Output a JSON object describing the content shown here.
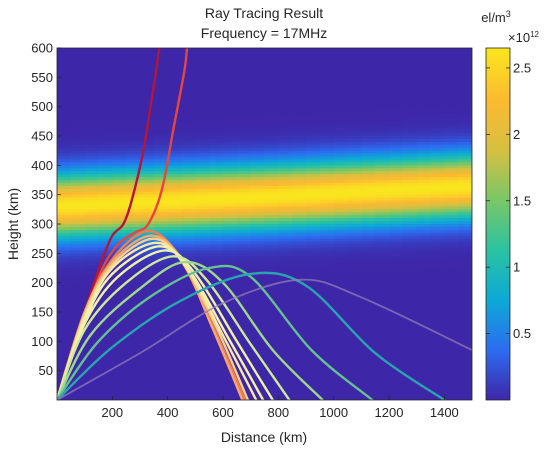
{
  "chart_data": {
    "type": "heatmap",
    "title": "Ray Tracing Result",
    "subtitle": "Frequency = 17MHz",
    "xlabel": "Distance (km)",
    "ylabel": "Height (km)",
    "xlim": [
      0,
      1500
    ],
    "ylim": [
      0,
      600
    ],
    "x_ticks": [
      200,
      400,
      600,
      800,
      1000,
      1200,
      1400
    ],
    "y_ticks": [
      50,
      100,
      150,
      200,
      250,
      300,
      350,
      400,
      450,
      500,
      550,
      600
    ],
    "colorbar": {
      "unit_label": "el/m",
      "unit_exponent": "3",
      "scale_label": "×10",
      "scale_exponent": "12",
      "range": [
        0,
        2.65
      ],
      "ticks": [
        0.5,
        1,
        1.5,
        2,
        2.5
      ],
      "colormap": [
        "#3e26a8",
        "#2d6bf0",
        "#0da8d8",
        "#27c2a3",
        "#7ac766",
        "#d6c040",
        "#fdb931",
        "#f9e61e"
      ]
    },
    "layer": {
      "peak_density": 2.65,
      "peak_height": [
        330,
        346,
        364
      ],
      "peak_height_at_distance": [
        0,
        750,
        1500
      ],
      "half_thickness": 52
    },
    "series": [
      {
        "values": [
          [
            0,
            0
          ],
          [
            100,
            150
          ],
          [
            160,
            235
          ],
          [
            200,
            280
          ],
          [
            240,
            300
          ],
          [
            270,
            340
          ],
          [
            310,
            420
          ],
          [
            345,
            520
          ],
          [
            370,
            600
          ]
        ],
        "color": "#b5153a"
      },
      {
        "values": [
          [
            0,
            0
          ],
          [
            100,
            140
          ],
          [
            160,
            220
          ],
          [
            220,
            265
          ],
          [
            280,
            285
          ],
          [
            330,
            300
          ],
          [
            380,
            360
          ],
          [
            420,
            460
          ],
          [
            460,
            560
          ],
          [
            470,
            600
          ]
        ],
        "color": "#e8453c"
      },
      {
        "values": [
          [
            0,
            0
          ],
          [
            100,
            150
          ],
          [
            200,
            240
          ],
          [
            330,
            288
          ],
          [
            440,
            245
          ],
          [
            560,
            130
          ],
          [
            680,
            0
          ]
        ],
        "color": "#f07b55"
      },
      {
        "values": [
          [
            0,
            0
          ],
          [
            100,
            150
          ],
          [
            200,
            235
          ],
          [
            340,
            280
          ],
          [
            450,
            240
          ],
          [
            560,
            125
          ],
          [
            670,
            0
          ]
        ],
        "color": "#f6a76e"
      },
      {
        "values": [
          [
            0,
            0
          ],
          [
            100,
            145
          ],
          [
            200,
            230
          ],
          [
            350,
            275
          ],
          [
            460,
            230
          ],
          [
            580,
            120
          ],
          [
            690,
            0
          ]
        ],
        "color": "#fbcf8e"
      },
      {
        "values": [
          [
            0,
            0
          ],
          [
            100,
            140
          ],
          [
            200,
            225
          ],
          [
            360,
            268
          ],
          [
            470,
            225
          ],
          [
            600,
            110
          ],
          [
            720,
            0
          ]
        ],
        "color": "#fbe9a6"
      },
      {
        "values": [
          [
            0,
            0
          ],
          [
            100,
            135
          ],
          [
            200,
            215
          ],
          [
            370,
            262
          ],
          [
            480,
            220
          ],
          [
            620,
            105
          ],
          [
            745,
            0
          ]
        ],
        "color": "#f6f0ae"
      },
      {
        "values": [
          [
            0,
            0
          ],
          [
            100,
            130
          ],
          [
            220,
            210
          ],
          [
            390,
            255
          ],
          [
            500,
            215
          ],
          [
            650,
            100
          ],
          [
            780,
            0
          ]
        ],
        "color": "#eef3a8"
      },
      {
        "values": [
          [
            0,
            0
          ],
          [
            100,
            120
          ],
          [
            250,
            200
          ],
          [
            420,
            245
          ],
          [
            540,
            205
          ],
          [
            700,
            95
          ],
          [
            840,
            0
          ]
        ],
        "color": "#cdea9b"
      },
      {
        "values": [
          [
            0,
            0
          ],
          [
            120,
            110
          ],
          [
            300,
            190
          ],
          [
            460,
            235
          ],
          [
            600,
            200
          ],
          [
            780,
            85
          ],
          [
            960,
            0
          ]
        ],
        "color": "#9ed88e"
      },
      {
        "values": [
          [
            0,
            0
          ],
          [
            150,
            100
          ],
          [
            350,
            180
          ],
          [
            550,
            225
          ],
          [
            700,
            210
          ],
          [
            920,
            85
          ],
          [
            1140,
            0
          ]
        ],
        "color": "#63c291"
      },
      {
        "values": [
          [
            0,
            0
          ],
          [
            200,
            90
          ],
          [
            450,
            170
          ],
          [
            700,
            215
          ],
          [
            900,
            195
          ],
          [
            1150,
            80
          ],
          [
            1400,
            0
          ]
        ],
        "color": "#2aa3b1"
      },
      {
        "values": [
          [
            0,
            0
          ],
          [
            300,
            80
          ],
          [
            600,
            165
          ],
          [
            880,
            205
          ],
          [
            1100,
            175
          ],
          [
            1500,
            85
          ]
        ],
        "color": "#8c7fb8"
      }
    ]
  }
}
